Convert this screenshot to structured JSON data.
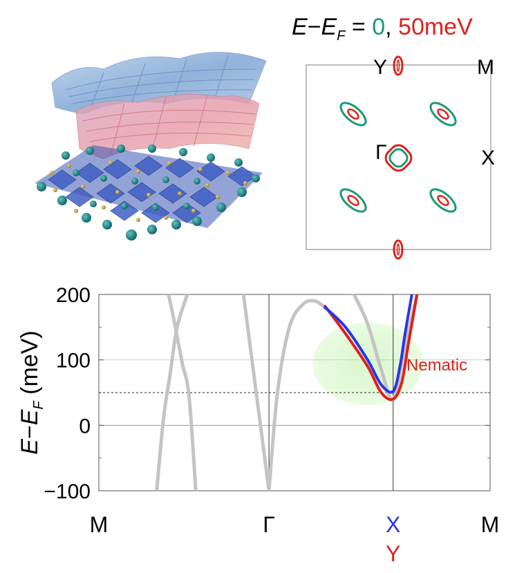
{
  "fs_title": {
    "E": "E",
    "minus": "−",
    "EF": "E",
    "F": "F",
    "eq": " = ",
    "zero": "0",
    "comma": ", ",
    "fifty": "50meV",
    "zero_color": "#1a9a72",
    "fifty_color": "#e0201b"
  },
  "fs_labels": {
    "Y": "Y",
    "M": "M",
    "Gamma": "Γ",
    "X": "X"
  },
  "colors": {
    "green": "#1a9a72",
    "red": "#e0201b",
    "blue": "#2a34e8",
    "gray": "#c4c4c4",
    "nematic_bg": "#e6f9dc"
  },
  "chart_data": {
    "type": "line",
    "ylabel": {
      "E": "E",
      "minus": "−",
      "EF": "E",
      "F": "F",
      "unit": " (meV)"
    },
    "ylim": [
      -100,
      200
    ],
    "yticks": [
      -100,
      0,
      100,
      200
    ],
    "ytick_labels": [
      "−100",
      "0",
      "100",
      "200"
    ],
    "x_high_symmetry": [
      {
        "label": "M",
        "x": 0
      },
      {
        "label": "Γ",
        "x": 1
      },
      {
        "label": "X",
        "label2": "Y",
        "x": 1.73
      },
      {
        "label": "M",
        "x": 2.3
      }
    ],
    "annotation": "Nematic",
    "fermi_dashed_line": 50,
    "series": [
      {
        "color": "#c4c4c4",
        "x": [
          0.41,
          0.45,
          0.49,
          0.53,
          0.57
        ],
        "y": [
          200,
          150,
          95,
          45,
          -100
        ]
      },
      {
        "color": "#c4c4c4",
        "x": [
          0.34,
          0.38,
          0.42,
          0.46,
          0.52
        ],
        "y": [
          -100,
          10,
          80,
          150,
          200
        ]
      },
      {
        "color": "#c4c4c4",
        "x": [
          0.85,
          0.9,
          0.95,
          1.0
        ],
        "y": [
          200,
          100,
          0,
          -100
        ]
      },
      {
        "color": "#c4c4c4",
        "x": [
          1.0,
          1.05,
          1.12,
          1.2,
          1.27,
          1.33
        ],
        "y": [
          -100,
          50,
          150,
          185,
          190,
          180
        ]
      },
      {
        "color": "#c4c4c4",
        "x": [
          1.5,
          1.58,
          1.66,
          1.73,
          1.8,
          1.87
        ],
        "y": [
          200,
          155,
          85,
          40,
          120,
          200
        ]
      },
      {
        "name": "Y",
        "color": "#e0201b",
        "x": [
          1.33,
          1.45,
          1.58,
          1.66,
          1.73,
          1.78,
          1.82,
          1.87
        ],
        "y": [
          182,
          140,
          90,
          50,
          40,
          65,
          125,
          200
        ]
      },
      {
        "name": "X",
        "color": "#2a34e8",
        "x": [
          1.33,
          1.45,
          1.58,
          1.66,
          1.73,
          1.77,
          1.8,
          1.84
        ],
        "y": [
          180,
          150,
          100,
          62,
          52,
          90,
          140,
          200
        ]
      }
    ]
  }
}
